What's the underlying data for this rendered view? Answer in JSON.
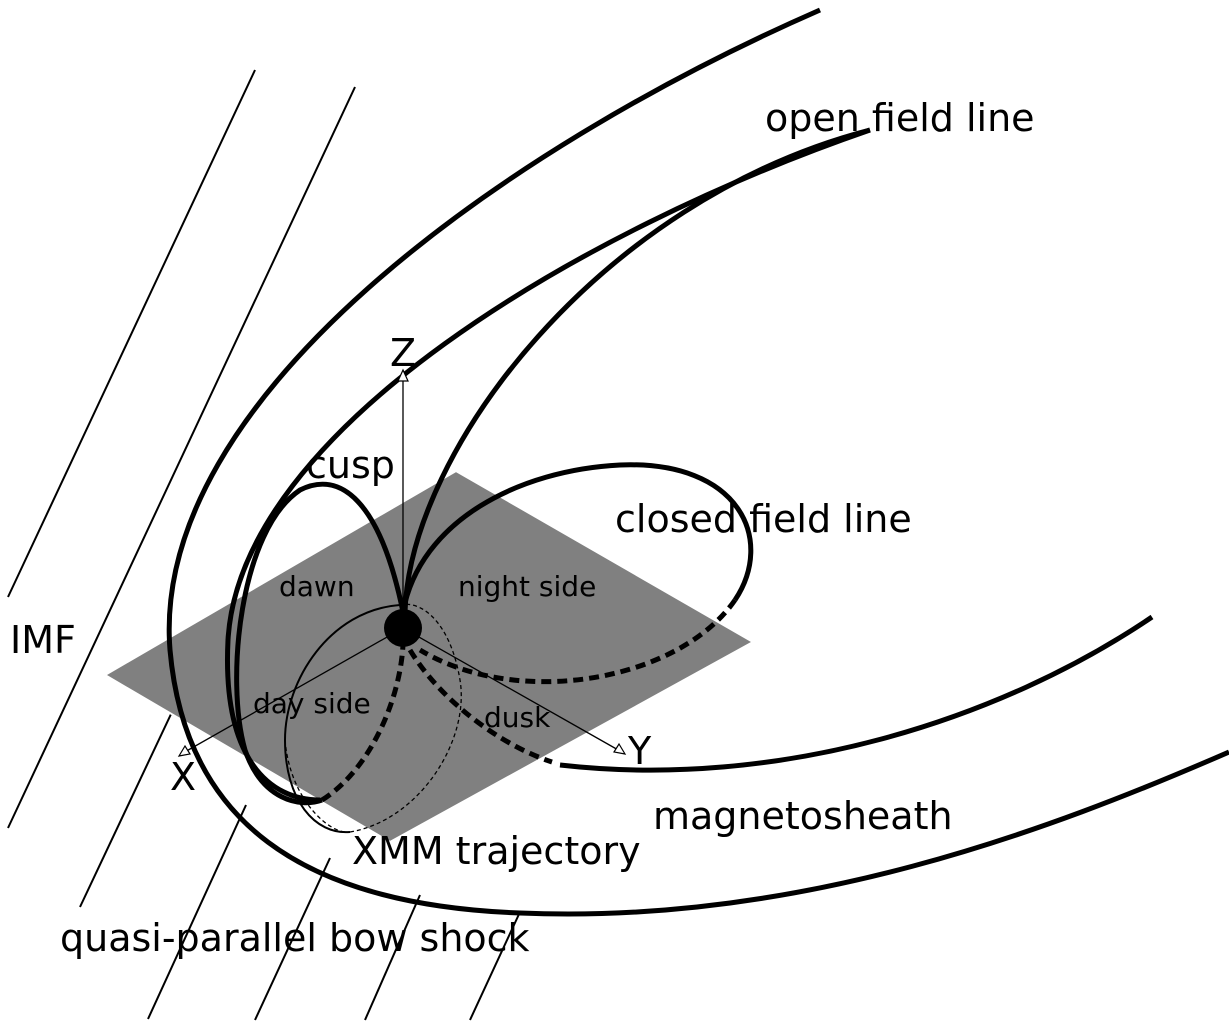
{
  "labels": {
    "open_field_line": "open field line",
    "z_axis": "Z",
    "cusp": "cusp",
    "closed_field_line": "closed field line",
    "dawn": "dawn",
    "night_side": "night side",
    "imf": "IMF",
    "day_side": "day side",
    "dusk": "dusk",
    "y_axis": "Y",
    "x_axis": "X",
    "magnetosheath": "magnetosheath",
    "xmm_trajectory": "XMM trajectory",
    "bow_shock": "quasi-parallel bow shock"
  }
}
